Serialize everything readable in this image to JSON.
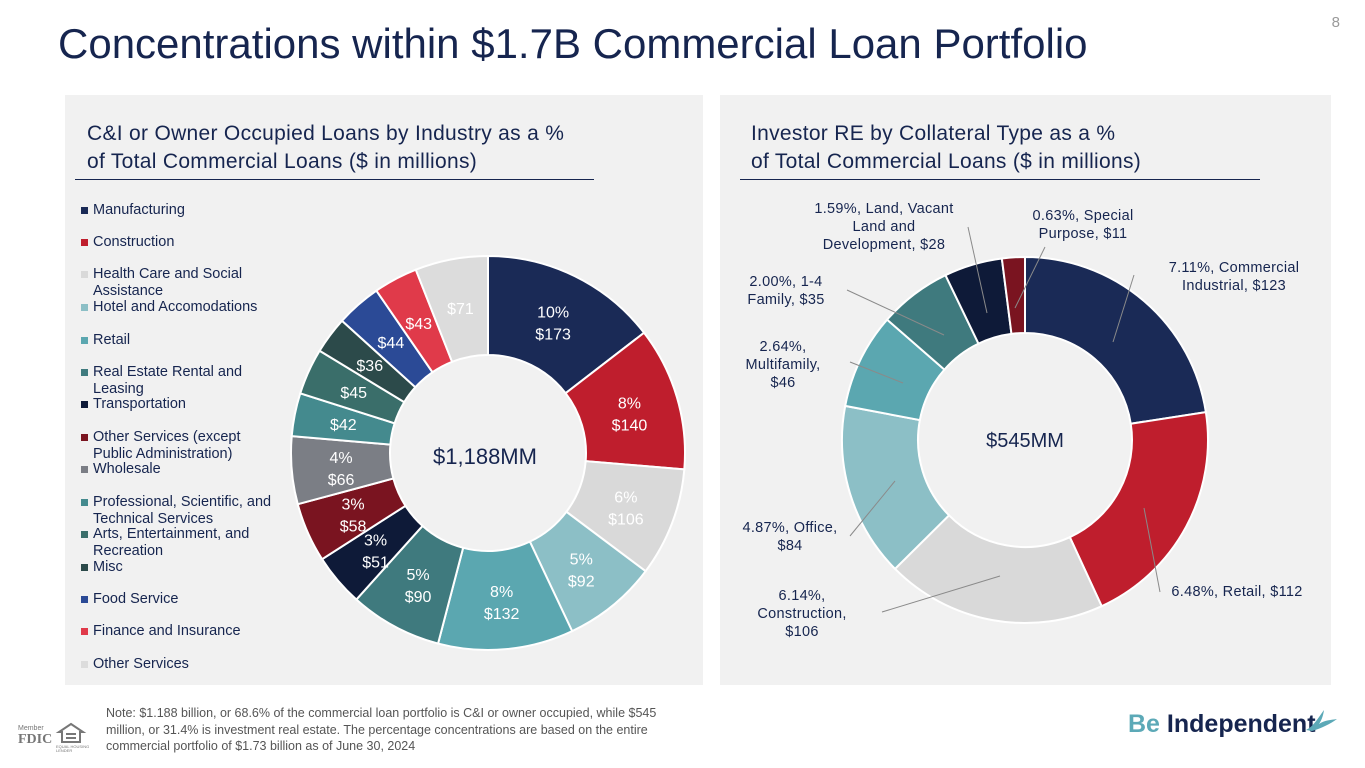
{
  "title": "Concentrations within $1.7B Commercial Loan Portfolio",
  "page_number": "8",
  "left_panel": {
    "title_line1": "C&I or Owner Occupied Loans by Industry as a %",
    "title_line2": "of Total Commercial Loans ($ in millions)"
  },
  "right_panel": {
    "title_line1": "Investor RE by Collateral Type as a %",
    "title_line2": "of Total Commercial Loans ($ in millions)"
  },
  "note": "Note: $1.188 billion, or 68.6% of the commercial loan portfolio is C&I or owner occupied, while $545 million, or 31.4% is investment real estate. The percentage concentrations are based on the entire commercial portfolio of $1.73 billion as of June 30, 2024",
  "brand": {
    "be": "Be",
    "independent": "Independent"
  },
  "fdic": {
    "member": "Member",
    "fdic": "FDIC",
    "housing": "EQUAL HOUSING LENDER"
  },
  "chart_data": [
    {
      "type": "pie",
      "donut": true,
      "center_label": "$1,188MM",
      "legend_position": "left",
      "categories": [
        "Manufacturing",
        "Construction",
        "Health Care and Social Assistance",
        "Hotel and Accomodations",
        "Retail",
        "Real Estate Rental and Leasing",
        "Transportation",
        "Other Services (except Public Administration)",
        "Wholesale",
        "Professional, Scientific, and Technical Services",
        "Arts, Entertainment, and Recreation",
        "Misc",
        "Food Service",
        "Finance and Insurance",
        "Other Services"
      ],
      "values": [
        173,
        140,
        106,
        92,
        132,
        90,
        51,
        58,
        66,
        42,
        45,
        36,
        44,
        43,
        71
      ],
      "colors": [
        "#1a2a56",
        "#bf1e2d",
        "#d9d9d9",
        "#8cbfc6",
        "#5ba7b0",
        "#3f7a7e",
        "#0e1a38",
        "#7a1420",
        "#7b7e85",
        "#448a8e",
        "#3a6e6a",
        "#2c4a4a",
        "#2b4a96",
        "#e03a4a",
        "#dcdcdc"
      ],
      "labels": [
        {
          "pct": "10%",
          "value": "$173"
        },
        {
          "pct": "8%",
          "value": "$140"
        },
        {
          "pct": "6%",
          "value": "$106"
        },
        {
          "pct": "5%",
          "value": "$92"
        },
        {
          "pct": "8%",
          "value": "$132"
        },
        {
          "pct": "5%",
          "value": "$90"
        },
        {
          "pct": "3%",
          "value": "$51"
        },
        {
          "pct": "3%",
          "value": "$58"
        },
        {
          "pct": "4%",
          "value": "$66"
        },
        {
          "pct": "",
          "value": "$42"
        },
        {
          "pct": "",
          "value": "$45"
        },
        {
          "pct": "",
          "value": "$36"
        },
        {
          "pct": "",
          "value": "$44"
        },
        {
          "pct": "",
          "value": "$43"
        },
        {
          "pct": "",
          "value": "$71"
        }
      ]
    },
    {
      "type": "pie",
      "donut": true,
      "center_label": "$545MM",
      "categories": [
        "Commercial Industrial",
        "Retail",
        "Construction",
        "Office",
        "Multifamily",
        "1-4 Family",
        "Land, Vacant Land and Development",
        "Special Purpose"
      ],
      "values": [
        123,
        112,
        106,
        84,
        46,
        35,
        28,
        11
      ],
      "colors": [
        "#1a2a56",
        "#bf1e2d",
        "#d9d9d9",
        "#8cbfc6",
        "#5ba7b0",
        "#3f7a7e",
        "#0e1a38",
        "#7a1420"
      ],
      "labels": [
        {
          "lines": [
            "7.11%, Commercial",
            "Industrial,  $123"
          ]
        },
        {
          "lines": [
            "6.48%, Retail,  $112"
          ]
        },
        {
          "lines": [
            "6.14%,",
            "Construction,",
            "$106"
          ]
        },
        {
          "lines": [
            "4.87%, Office,",
            "$84"
          ]
        },
        {
          "lines": [
            "2.64%,",
            "Multifamily,",
            "$46"
          ]
        },
        {
          "lines": [
            "2.00%, 1-4",
            "Family,  $35"
          ]
        },
        {
          "lines": [
            "1.59%, Land, Vacant",
            "Land and",
            "Development,  $28"
          ]
        },
        {
          "lines": [
            "0.63%, Special",
            "Purpose,  $11"
          ]
        }
      ]
    }
  ]
}
